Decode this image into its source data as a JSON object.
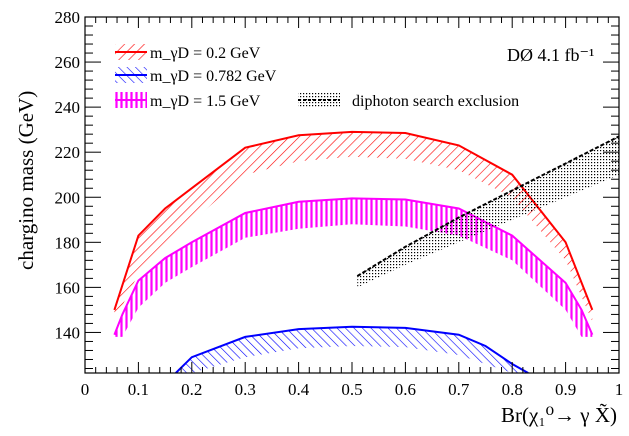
{
  "chart_data": {
    "type": "area",
    "xlabel": "Br(χ₁⁰→ γ X̃)",
    "ylabel": "chargino mass (GeV)",
    "xlim": [
      0,
      1
    ],
    "ylim": [
      122,
      280
    ],
    "xticks": [
      "0",
      "0.1",
      "0.2",
      "0.3",
      "0.4",
      "0.5",
      "0.6",
      "0.7",
      "0.8",
      "0.9",
      "1"
    ],
    "yticks": [
      "140",
      "160",
      "180",
      "200",
      "220",
      "240",
      "260",
      "280"
    ],
    "annotation": "DØ 4.1 fb⁻¹",
    "legend_position": "top-left",
    "grid": false,
    "series": [
      {
        "name": "m_γD = 0.2 GeV",
        "color": "#ff0000",
        "hatch": "diagonal",
        "x": [
          0.055,
          0.1,
          0.15,
          0.2,
          0.3,
          0.4,
          0.5,
          0.6,
          0.7,
          0.8,
          0.9,
          0.95
        ],
        "upper": [
          150,
          183,
          195,
          204,
          222,
          227.5,
          229,
          228.5,
          223,
          210,
          180,
          150
        ],
        "lower": [
          145,
          166,
          177,
          189,
          210,
          216,
          218,
          217,
          212,
          200,
          172,
          145
        ]
      },
      {
        "name": "m_γD = 0.782 GeV",
        "color": "#0000ff",
        "hatch": "diagonal",
        "x": [
          0.17,
          0.2,
          0.3,
          0.4,
          0.5,
          0.6,
          0.7,
          0.75,
          0.8,
          0.83
        ],
        "upper": [
          122,
          129,
          138,
          141.5,
          142.5,
          142,
          139,
          134,
          126,
          122
        ],
        "lower": [
          122,
          122,
          129,
          133,
          134,
          133.5,
          130,
          126,
          122,
          122
        ]
      },
      {
        "name": "m_γD = 1.5 GeV",
        "color": "#ff00ff",
        "hatch": "vertical",
        "x": [
          0.055,
          0.07,
          0.1,
          0.15,
          0.2,
          0.3,
          0.4,
          0.5,
          0.6,
          0.7,
          0.8,
          0.9,
          0.93,
          0.95
        ],
        "upper": [
          139,
          148,
          163,
          173,
          180,
          193,
          198,
          199.5,
          199,
          195,
          183,
          162,
          150,
          139
        ],
        "lower": [
          138,
          138,
          151,
          162,
          169,
          182,
          186,
          188,
          187,
          183,
          172,
          150,
          138,
          138
        ]
      },
      {
        "name": "diphoton search exclusion",
        "color": "#000000",
        "hatch": "dotted",
        "x": [
          0.51,
          0.6,
          0.7,
          0.8,
          0.9,
          1.0
        ],
        "upper": [
          165,
          178,
          191,
          203,
          215,
          227
        ],
        "lower": [
          160,
          170,
          180,
          190,
          200,
          210
        ]
      }
    ]
  }
}
